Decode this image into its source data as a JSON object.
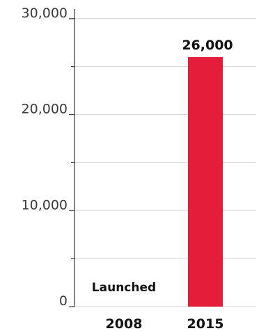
{
  "chart_data": {
    "type": "bar",
    "categories": [
      "2008",
      "2015"
    ],
    "values": [
      0,
      26000
    ],
    "data_labels": [
      "",
      "26,000"
    ],
    "annotations": [
      "Launched"
    ],
    "y_ticks": [
      0,
      10000,
      20000,
      30000
    ],
    "y_tick_labels": [
      "0",
      "10,000",
      "20,000",
      "30,000"
    ],
    "ylim": [
      0,
      31000
    ],
    "grid": true,
    "title": "",
    "xlabel": "",
    "ylabel": "",
    "colors": {
      "bar": "#e41e3a",
      "grid": "#d2d2d2",
      "axis": "#333333"
    }
  }
}
